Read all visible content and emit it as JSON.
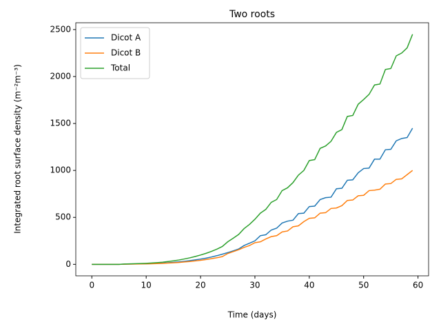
{
  "chart_data": {
    "type": "line",
    "title": "Two roots",
    "xlabel": "Time (days)",
    "ylabel": "Integrated root surface density (m⁻²m⁻³)",
    "x": [
      0,
      1,
      2,
      3,
      4,
      5,
      6,
      7,
      8,
      9,
      10,
      11,
      12,
      13,
      14,
      15,
      16,
      17,
      18,
      19,
      20,
      21,
      22,
      23,
      24,
      25,
      26,
      27,
      28,
      29,
      30,
      31,
      32,
      33,
      34,
      35,
      36,
      37,
      38,
      39,
      40,
      41,
      42,
      43,
      44,
      45,
      46,
      47,
      48,
      49,
      50,
      51,
      52,
      53,
      54,
      55,
      56,
      57,
      58,
      59
    ],
    "series": [
      {
        "name": "Dicot A",
        "color": "#1f77b4",
        "values": [
          0,
          0,
          0,
          0,
          0,
          0,
          2,
          3,
          4,
          5,
          6,
          8,
          10,
          13,
          17,
          21,
          26,
          32,
          39,
          47,
          56,
          66,
          78,
          92,
          108,
          125,
          143,
          163,
          200,
          225,
          250,
          305,
          315,
          365,
          385,
          440,
          460,
          470,
          540,
          545,
          615,
          620,
          690,
          710,
          715,
          805,
          810,
          895,
          900,
          975,
          1020,
          1025,
          1120,
          1120,
          1220,
          1225,
          1315,
          1340,
          1350,
          1450
        ]
      },
      {
        "name": "Dicot B",
        "color": "#ff7f0e",
        "values": [
          0,
          0,
          0,
          0,
          0,
          0,
          1,
          2,
          3,
          4,
          5,
          6,
          8,
          10,
          13,
          16,
          20,
          25,
          30,
          36,
          43,
          51,
          60,
          70,
          82,
          115,
          135,
          155,
          180,
          200,
          230,
          240,
          270,
          295,
          305,
          345,
          355,
          400,
          410,
          455,
          490,
          495,
          545,
          550,
          595,
          600,
          625,
          680,
          685,
          730,
          735,
          785,
          790,
          800,
          855,
          860,
          905,
          910,
          955,
          1000
        ]
      },
      {
        "name": "Total",
        "color": "#2ca02c",
        "values": [
          0,
          0,
          0,
          0,
          0,
          0,
          3,
          5,
          7,
          9,
          11,
          14,
          18,
          23,
          30,
          37,
          46,
          57,
          69,
          83,
          99,
          117,
          138,
          162,
          190,
          240,
          278,
          318,
          380,
          425,
          480,
          545,
          585,
          660,
          690,
          785,
          815,
          870,
          950,
          1000,
          1105,
          1115,
          1235,
          1260,
          1310,
          1405,
          1435,
          1575,
          1585,
          1705,
          1755,
          1810,
          1910,
          1920,
          2075,
          2085,
          2220,
          2250,
          2305,
          2450
        ]
      }
    ],
    "xlim": [
      -2.95,
      61.95
    ],
    "ylim": [
      -122.5,
      2572.5
    ],
    "xticks": [
      0,
      10,
      20,
      30,
      40,
      50,
      60
    ],
    "yticks": [
      0,
      500,
      1000,
      1500,
      2000,
      2500
    ],
    "legend": "upper left"
  }
}
